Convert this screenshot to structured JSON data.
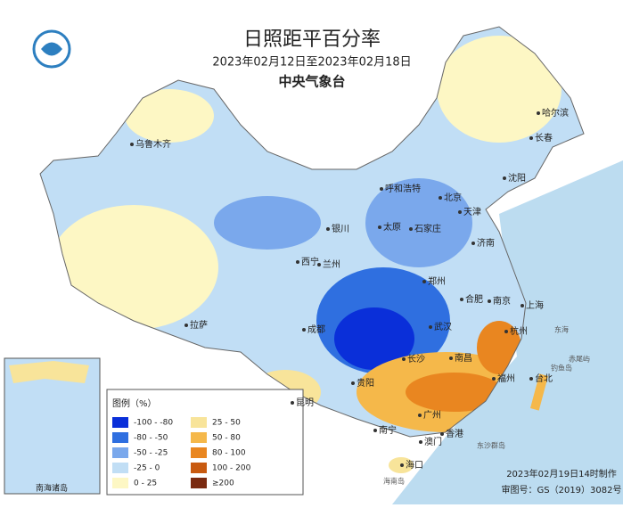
{
  "header": {
    "title": "日照距平百分率",
    "date_range": "2023年02月12日至2023年02月18日",
    "organization": "中央气象台"
  },
  "legend": {
    "title": "图例（%）",
    "items": [
      {
        "label": "-100 - -80",
        "color": "#0a2fd9"
      },
      {
        "label": "-80 - -50",
        "color": "#2f6fe0"
      },
      {
        "label": "-50 - -25",
        "color": "#7aa8ec"
      },
      {
        "label": "-25 - 0",
        "color": "#c1def5"
      },
      {
        "label": "0 - 25",
        "color": "#fdf7c4"
      },
      {
        "label": "25 - 50",
        "color": "#f8e49a"
      },
      {
        "label": "50 - 80",
        "color": "#f5b84a"
      },
      {
        "label": "80 - 100",
        "color": "#e98620"
      },
      {
        "label": "100 - 200",
        "color": "#c85a10"
      },
      {
        "label": "≥200",
        "color": "#7a2a10"
      }
    ]
  },
  "cities": [
    "哈尔滨",
    "长春",
    "沈阳",
    "乌鲁木齐",
    "呼和浩特",
    "北京",
    "天津",
    "石家庄",
    "太原",
    "济南",
    "银川",
    "西宁",
    "兰州",
    "郑州",
    "合肥",
    "南京",
    "上海",
    "武汉",
    "成都",
    "长沙",
    "南昌",
    "杭州",
    "福州",
    "台北",
    "贵阳",
    "昆明",
    "南宁",
    "广州",
    "香港",
    "澳门",
    "海口",
    "拉萨"
  ],
  "places": [
    "东海",
    "钓鱼岛",
    "赤尾屿",
    "东沙群岛",
    "海南岛"
  ],
  "inset": {
    "label": "南海诸岛"
  },
  "footer": {
    "made": "2023年02月19日14时制作",
    "approval": "审图号：GS（2019）3082号"
  }
}
